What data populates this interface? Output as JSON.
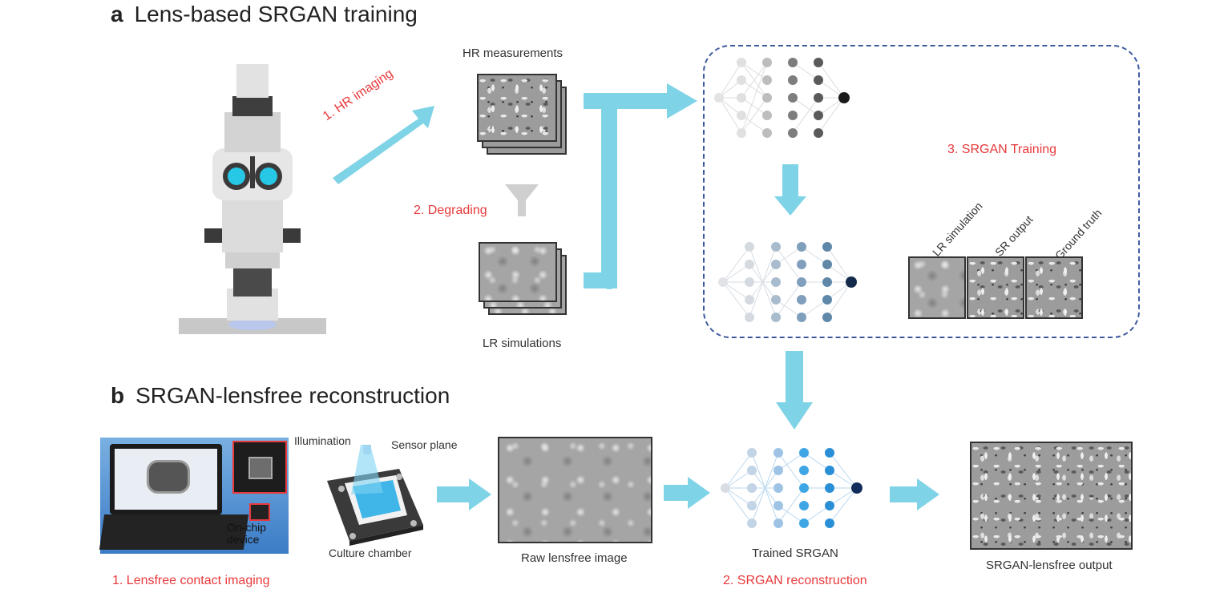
{
  "section_a": {
    "letter": "a",
    "title": "Lens-based SRGAN training",
    "step1": "1. HR imaging",
    "step2": "2. Degrading",
    "step3": "3.  SRGAN Training",
    "hr_label": "HR measurements",
    "lr_label": "LR simulations",
    "compare_labels": [
      "LR simulation",
      "SR output",
      "Ground truth"
    ]
  },
  "section_b": {
    "letter": "b",
    "title": "SRGAN-lensfree reconstruction",
    "laptop_device": "On-chip\ndevice",
    "illumination": "Illumination",
    "sensor_plane": "Sensor plane",
    "culture_chamber": "Culture chamber",
    "raw_label": "Raw lensfree image",
    "trained_label": "Trained SRGAN",
    "output_label": "SRGAN-lensfree output",
    "step1": "1. Lensfree contact imaging",
    "step2": "2.  SRGAN reconstruction"
  },
  "colors": {
    "arrow": "#7fd3e6",
    "accent_red": "#e8393b",
    "dashed_box": "#3d5a9e",
    "nn_gray": "#6b6b6b",
    "nn_blue": "#5f87a8",
    "nn_bright": "#2a8fd6"
  }
}
